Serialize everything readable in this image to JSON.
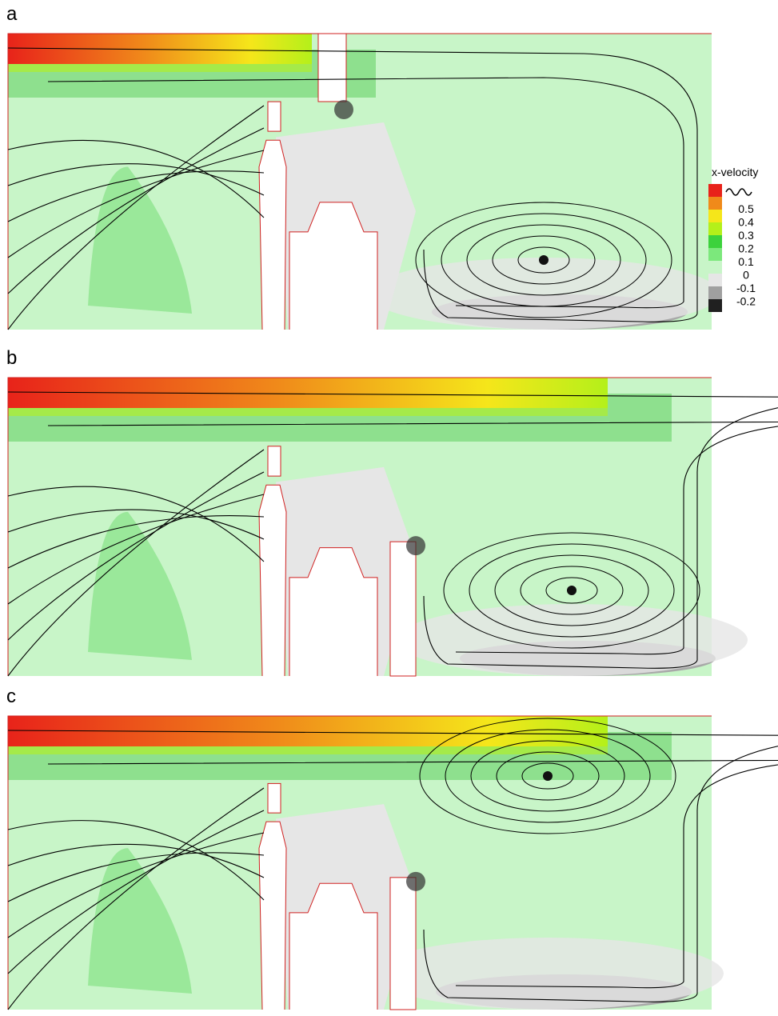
{
  "panels": [
    {
      "label": "a"
    },
    {
      "label": "b"
    },
    {
      "label": "c"
    }
  ],
  "legend": {
    "title": "x-velocity",
    "ticks": [
      0.5,
      0.4,
      0.3,
      0.2,
      0.1,
      0,
      -0.1,
      -0.2
    ],
    "colors": [
      "#e8231a",
      "#f08a1a",
      "#f5e61a",
      "#b4f01a",
      "#3cd23c",
      "#7ce87c",
      "#c8f5c8",
      "#e6e6e6",
      "#a0a0a0",
      "#202020"
    ]
  }
}
